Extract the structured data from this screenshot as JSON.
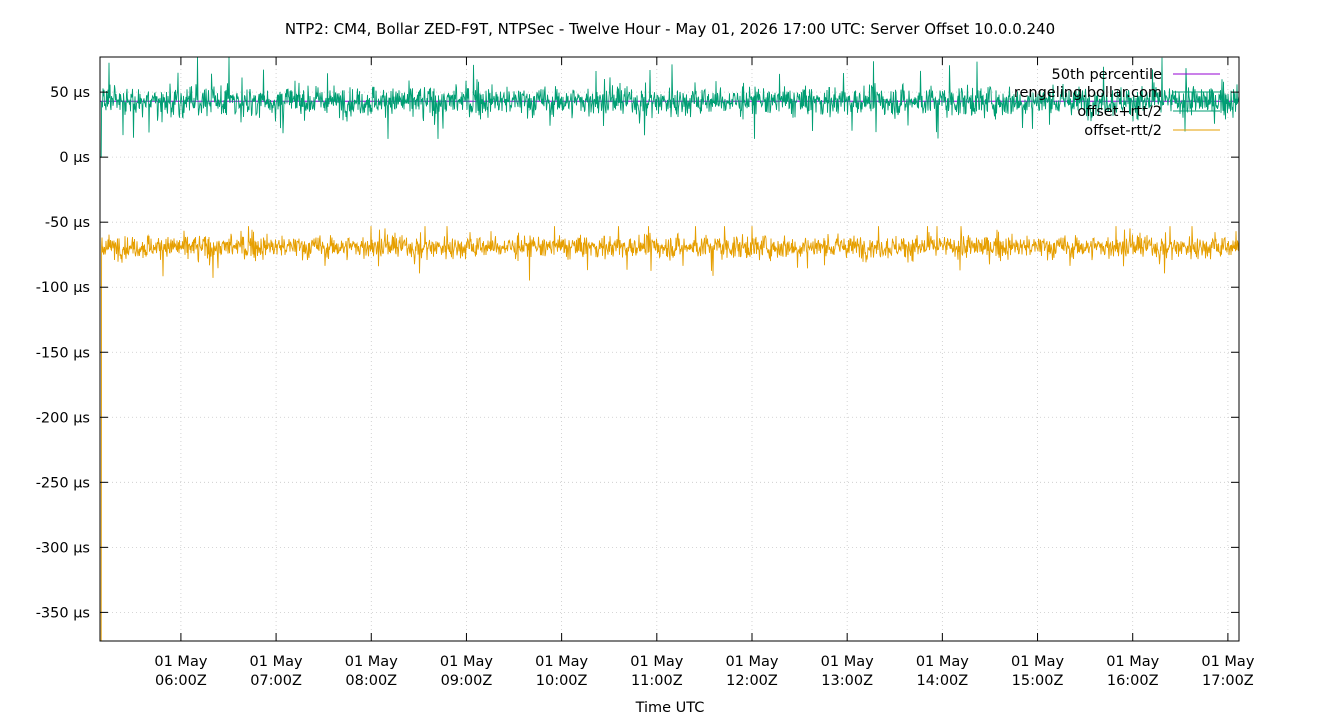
{
  "chart_data": {
    "type": "line",
    "title": "NTP2: CM4, Bollar ZED-F9T, NTPSec - Twelve Hour - May 01, 2026 17:00 UTC: Server Offset 10.0.0.240",
    "xlabel": "Time UTC",
    "ylabel": "",
    "ylim": [
      -372,
      77
    ],
    "y_unit": "µs",
    "y_ticks": [
      50,
      0,
      -50,
      -100,
      -150,
      -200,
      -250,
      -300,
      -350
    ],
    "y_tick_labels": [
      "50 µs",
      "0 µs",
      "-50 µs",
      "-100 µs",
      "-150 µs",
      "-200 µs",
      "-250 µs",
      "-300 µs",
      "-350 µs"
    ],
    "x_range": [
      "2026-05-01T05:09Z",
      "2026-05-01T17:07Z"
    ],
    "x_ticks": [
      "06:00Z",
      "07:00Z",
      "08:00Z",
      "09:00Z",
      "10:00Z",
      "11:00Z",
      "12:00Z",
      "13:00Z",
      "14:00Z",
      "15:00Z",
      "16:00Z",
      "17:00Z"
    ],
    "x_tick_labels": [
      [
        "01 May",
        "06:00Z"
      ],
      [
        "01 May",
        "07:00Z"
      ],
      [
        "01 May",
        "08:00Z"
      ],
      [
        "01 May",
        "09:00Z"
      ],
      [
        "01 May",
        "10:00Z"
      ],
      [
        "01 May",
        "11:00Z"
      ],
      [
        "01 May",
        "12:00Z"
      ],
      [
        "01 May",
        "13:00Z"
      ],
      [
        "01 May",
        "14:00Z"
      ],
      [
        "01 May",
        "15:00Z"
      ],
      [
        "01 May",
        "16:00Z"
      ],
      [
        "01 May",
        "17:00Z"
      ]
    ],
    "grid": true,
    "legend_position": "top-right",
    "series": [
      {
        "name": "50th percentile",
        "color": "#9400d3",
        "style": "constant",
        "value": 43
      },
      {
        "name": "rengeling.bollar.com",
        "color": "#009e73",
        "style": "noise",
        "center": 43,
        "spread": 9,
        "min": 14,
        "max": 77,
        "start_dip": 0
      },
      {
        "name": "offset+rtt/2",
        "color": "#009e73",
        "style": "noise",
        "center": 43,
        "spread": 9,
        "min": 14,
        "max": 77,
        "start_dip": 0
      },
      {
        "name": "offset-rtt/2",
        "color": "#e69f00",
        "style": "noise",
        "center": -69,
        "spread": 7,
        "min": -110,
        "max": -53,
        "start_dip": -372
      }
    ]
  }
}
